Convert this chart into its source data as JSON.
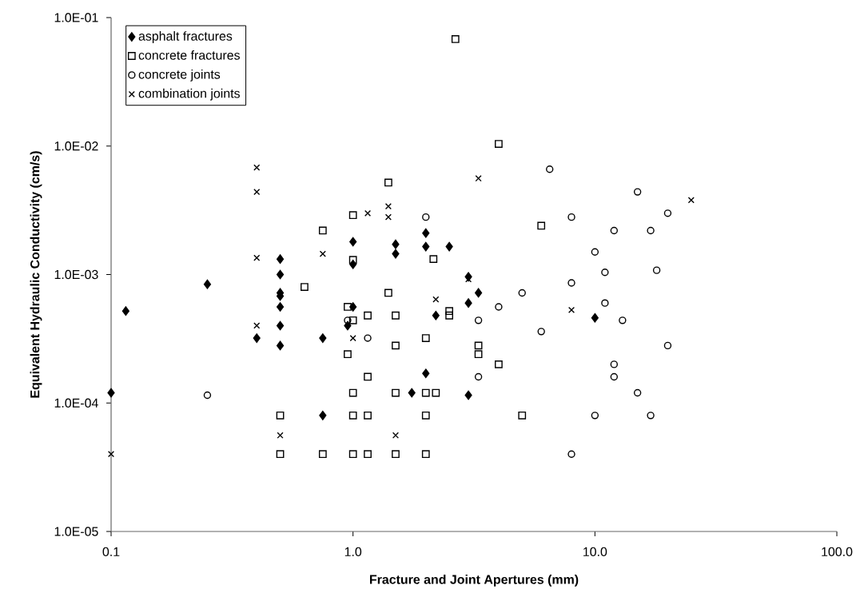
{
  "chart_data": {
    "type": "scatter",
    "log": "xy",
    "grid": false,
    "legend": "top left",
    "xlabel": "Fracture and Joint Apertures (mm)",
    "ylabel": "Equivalent Hydraulic Conductivity (cm/s)",
    "xlim": [
      0.1,
      100
    ],
    "ylim": [
      1e-05,
      0.1
    ],
    "xticks": [
      {
        "value": 0.1,
        "label": "0.1"
      },
      {
        "value": 1,
        "label": "1.0"
      },
      {
        "value": 10,
        "label": "10.0"
      },
      {
        "value": 100,
        "label": "100.0"
      }
    ],
    "yticks": [
      {
        "value": 1e-05,
        "label": "1.0E-05"
      },
      {
        "value": 0.0001,
        "label": "1.0E-04"
      },
      {
        "value": 0.001,
        "label": "1.0E-03"
      },
      {
        "value": 0.01,
        "label": "1.0E-02"
      },
      {
        "value": 0.1,
        "label": "1.0E-01"
      }
    ],
    "series": [
      {
        "name": "asphalt fractures",
        "color": "#000000",
        "marker": "diamond",
        "x": [
          0.1,
          0.115,
          0.25,
          0.4,
          0.5,
          0.5,
          0.5,
          0.5,
          0.5,
          0.5,
          0.5,
          0.75,
          0.75,
          0.95,
          1.0,
          1.0,
          1.0,
          1.5,
          1.5,
          2.0,
          2.0,
          2.5,
          2.0,
          1.75,
          2.2,
          3.0,
          3.0,
          3.3,
          3.0,
          10
        ],
        "values": [
          0.00012,
          0.00052,
          0.00084,
          0.00032,
          0.00132,
          0.001,
          0.00072,
          0.00068,
          0.00056,
          0.0004,
          0.00028,
          0.00032,
          8e-05,
          0.0004,
          0.0018,
          0.0012,
          0.00056,
          0.00172,
          0.00145,
          0.0021,
          0.00165,
          0.00165,
          0.00017,
          0.00012,
          0.00048,
          0.00096,
          0.0006,
          0.00072,
          0.000115,
          0.00046
        ]
      },
      {
        "name": "concrete fractures",
        "color": "#000000",
        "marker": "square",
        "x": [
          0.63,
          0.75,
          0.5,
          0.5,
          0.75,
          0.95,
          0.95,
          1.0,
          1.0,
          1.0,
          1.0,
          1.0,
          1.0,
          1.15,
          1.15,
          1.15,
          1.15,
          1.4,
          1.4,
          1.5,
          1.5,
          1.5,
          1.5,
          2.0,
          2.0,
          2.2,
          2.0,
          2.0,
          2.15,
          2.5,
          2.5,
          2.65,
          3.3,
          3.3,
          4.0,
          4.0,
          5.0,
          6.0
        ],
        "values": [
          0.0008,
          0.0022,
          8e-05,
          4e-05,
          4e-05,
          0.00056,
          0.00024,
          0.0029,
          0.0013,
          0.00044,
          0.00012,
          8e-05,
          4e-05,
          0.00048,
          0.00016,
          8e-05,
          4e-05,
          0.0052,
          0.00072,
          0.00048,
          0.00028,
          0.00012,
          4e-05,
          0.00032,
          0.00012,
          0.00012,
          8e-05,
          4e-05,
          0.00132,
          0.00052,
          0.00048,
          0.068,
          0.00028,
          0.00024,
          0.0104,
          0.0002,
          8e-05,
          0.0024
        ]
      },
      {
        "name": "concrete joints",
        "color": "#000000",
        "marker": "circle",
        "x": [
          0.25,
          0.95,
          1.15,
          2.0,
          3.3,
          3.3,
          4.0,
          5.0,
          6.0,
          6.5,
          8,
          8,
          8,
          10,
          10,
          11,
          11,
          12,
          12,
          12,
          13,
          15,
          15,
          17,
          17,
          18,
          20,
          20
        ],
        "values": [
          0.000115,
          0.00044,
          0.00032,
          0.0028,
          0.00044,
          0.00016,
          0.00056,
          0.00072,
          0.00036,
          0.0066,
          0.0028,
          0.00086,
          4e-05,
          0.0015,
          8e-05,
          0.00104,
          0.0006,
          0.0022,
          0.0002,
          0.00016,
          0.00044,
          0.0044,
          0.00012,
          0.0022,
          8e-05,
          0.00108,
          0.003,
          0.00028
        ]
      },
      {
        "name": "combination joints",
        "color": "#000000",
        "marker": "cross",
        "x": [
          0.1,
          0.4,
          0.4,
          0.4,
          0.4,
          0.5,
          0.75,
          1.0,
          1.15,
          1.4,
          1.4,
          1.5,
          2.2,
          3.0,
          3.3,
          8,
          25
        ],
        "values": [
          4e-05,
          0.0068,
          0.0044,
          0.00135,
          0.0004,
          5.6e-05,
          0.00145,
          0.00032,
          0.003,
          0.0034,
          0.0028,
          5.6e-05,
          0.00064,
          0.00092,
          0.0056,
          0.00053,
          0.0038
        ]
      }
    ]
  }
}
